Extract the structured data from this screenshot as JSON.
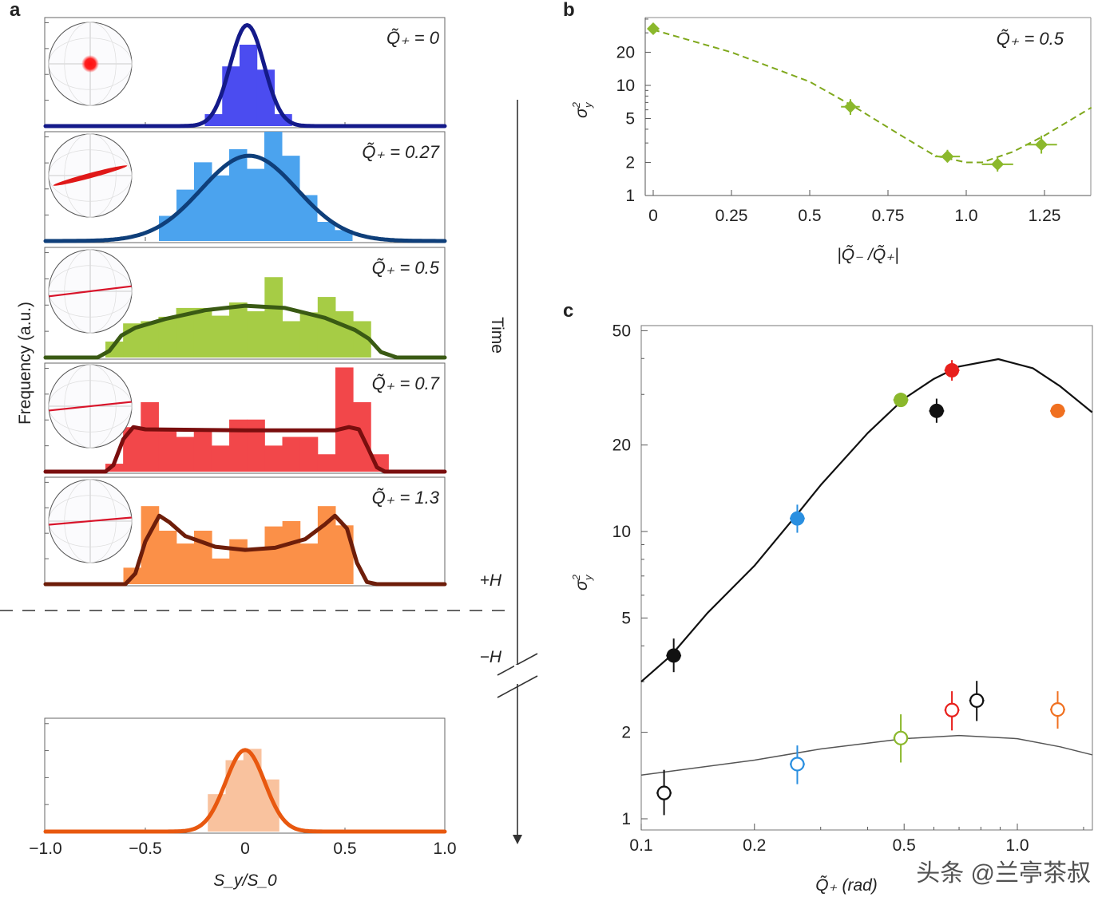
{
  "watermark": "头条 @兰亭茶叔",
  "annotations": {
    "time": "Time",
    "plus_h": "+H",
    "minus_h": "−H"
  },
  "chart_data": [
    {
      "panel": "a",
      "type": "bar",
      "ylabel": "Frequency (a.u.)",
      "xlabel": "S_y/S_0",
      "xlabel_main": "S",
      "xlabel_sub1": "y",
      "xlabel_sep": "/S",
      "xlabel_sub2": "0",
      "xlim": [
        -1,
        1
      ],
      "xticks": [
        "−1.0",
        "−0.5",
        "0",
        "0.5",
        "1.0"
      ],
      "xtick_values": [
        -1,
        -0.5,
        0,
        0.5,
        1
      ],
      "subplots": [
        {
          "label": "Q̃₊ = 0",
          "hist_color": "#4b4cf0",
          "fit_color": "#141a8a",
          "bin_start": -0.202,
          "bin_width": 0.087,
          "values": [
            0.11,
            0.55,
            0.75,
            0.52,
            0.11
          ],
          "fit": {
            "type": "gaussian",
            "amplitude": 0.93,
            "center": 0.01,
            "sigma": 0.085
          },
          "sphere_state": "dot"
        },
        {
          "label": "Q̃₊ = 0.27",
          "hist_color": "#4ba3ee",
          "fit_color": "#0f3f7a",
          "bin_start": -0.432,
          "bin_width": 0.088,
          "values": [
            0.23,
            0.47,
            0.72,
            0.6,
            0.84,
            0.66,
            1.0,
            0.78,
            0.42,
            0.175,
            0.1
          ],
          "fit": {
            "type": "gaussian",
            "amplitude": 0.78,
            "center": 0.02,
            "sigma": 0.24
          },
          "sphere_state": "ellipse",
          "sphere_angle": -15
        },
        {
          "label": "Q̃₊ = 0.5",
          "hist_color": "#a6cc45",
          "fit_color": "#3a5a14",
          "bin_start": -0.7,
          "bin_width": 0.0886,
          "values": [
            0.145,
            0.31,
            0.33,
            0.37,
            0.45,
            0.45,
            0.38,
            0.5,
            0.42,
            0.73,
            0.33,
            0.41,
            0.55,
            0.42,
            0.33
          ],
          "fit": {
            "type": "points",
            "points": [
              [
                -1,
                0
              ],
              [
                -0.74,
                0
              ],
              [
                -0.68,
                0.06
              ],
              [
                -0.62,
                0.2
              ],
              [
                -0.55,
                0.27
              ],
              [
                -0.4,
                0.35
              ],
              [
                -0.2,
                0.43
              ],
              [
                0,
                0.47
              ],
              [
                0.2,
                0.45
              ],
              [
                0.4,
                0.36
              ],
              [
                0.55,
                0.25
              ],
              [
                0.62,
                0.17
              ],
              [
                0.68,
                0.05
              ],
              [
                0.76,
                0
              ],
              [
                1,
                0
              ]
            ]
          },
          "sphere_state": "line",
          "sphere_angle": -7
        },
        {
          "label": "Q̃₊ = 0.7",
          "hist_color": "#f2474a",
          "fit_color": "#7a0e0e",
          "bin_start": -0.7,
          "bin_width": 0.0886,
          "values": [
            0.073,
            0.41,
            0.64,
            0.38,
            0.32,
            0.38,
            0.24,
            0.48,
            0.48,
            0.24,
            0.32,
            0.32,
            0.16,
            0.96,
            0.64,
            0.16
          ],
          "fit": {
            "type": "points",
            "points": [
              [
                -1,
                0
              ],
              [
                -0.7,
                0
              ],
              [
                -0.66,
                0.06
              ],
              [
                -0.61,
                0.3
              ],
              [
                -0.56,
                0.41
              ],
              [
                -0.5,
                0.39
              ],
              [
                0,
                0.38
              ],
              [
                0.45,
                0.38
              ],
              [
                0.52,
                0.41
              ],
              [
                0.57,
                0.39
              ],
              [
                0.62,
                0.2
              ],
              [
                0.66,
                0.04
              ],
              [
                0.7,
                0
              ],
              [
                1,
                0
              ]
            ]
          },
          "sphere_state": "line",
          "sphere_angle": -6
        },
        {
          "label": "Q̃₊ = 1.3",
          "hist_color": "#fb9048",
          "fit_color": "#6e1e0a",
          "bin_start": -0.61,
          "bin_width": 0.0885,
          "values": [
            0.154,
            0.73,
            0.5,
            0.38,
            0.5,
            0.24,
            0.42,
            0.32,
            0.54,
            0.59,
            0.38,
            0.73,
            0.55
          ],
          "fit": {
            "type": "points",
            "points": [
              [
                -1,
                0
              ],
              [
                -0.6,
                0
              ],
              [
                -0.55,
                0.1
              ],
              [
                -0.5,
                0.4
              ],
              [
                -0.43,
                0.64
              ],
              [
                -0.38,
                0.58
              ],
              [
                -0.3,
                0.45
              ],
              [
                -0.15,
                0.35
              ],
              [
                0,
                0.32
              ],
              [
                0.15,
                0.34
              ],
              [
                0.3,
                0.42
              ],
              [
                0.4,
                0.56
              ],
              [
                0.45,
                0.64
              ],
              [
                0.51,
                0.52
              ],
              [
                0.56,
                0.2
              ],
              [
                0.61,
                0.02
              ],
              [
                0.66,
                0
              ],
              [
                1,
                0
              ]
            ]
          },
          "sphere_state": "line",
          "sphere_angle": -5
        },
        {
          "label": "",
          "hist_color": "#f9c29e",
          "fit_color": "#e8580f",
          "bin_start": -0.187,
          "bin_width": 0.089,
          "values": [
            0.33,
            0.63,
            0.73,
            0.46
          ],
          "fit": {
            "type": "gaussian",
            "amplitude": 0.72,
            "center": 0.0,
            "sigma": 0.098
          },
          "sphere_state": "none"
        }
      ]
    },
    {
      "panel": "b",
      "type": "scatter",
      "annotation": "Q̃₊ = 0.5",
      "xlabel": "|Q̃₋ /Q̃₊|",
      "ylabel": "σ²y",
      "ylabel_main": "σ",
      "ylabel_sup": "2",
      "ylabel_sub": "y",
      "yscale": "log",
      "xlim": [
        -0.025,
        1.4
      ],
      "ylim": [
        1,
        41
      ],
      "xticks": [
        "0",
        "0.25",
        "0.5",
        "0.75",
        "1.0",
        "1.25"
      ],
      "xtick_values": [
        0,
        0.25,
        0.5,
        0.75,
        1.0,
        1.25
      ],
      "yticks": [
        "1",
        "2",
        "5",
        "10",
        "20"
      ],
      "ytick_values": [
        1,
        2,
        5,
        10,
        20
      ],
      "color": "#8bb82c",
      "points": [
        {
          "x": 0,
          "y": 32.7,
          "xerr": 0,
          "ylow": 31,
          "yhigh": 34.5
        },
        {
          "x": 0.63,
          "y": 6.4,
          "xerr": 0.03,
          "ylow": 5.4,
          "yhigh": 7.5
        },
        {
          "x": 0.94,
          "y": 2.26,
          "xerr": 0.04,
          "ylow": 2.0,
          "yhigh": 2.6
        },
        {
          "x": 1.1,
          "y": 1.92,
          "xerr": 0.05,
          "ylow": 1.65,
          "yhigh": 2.2
        },
        {
          "x": 1.24,
          "y": 2.9,
          "xerr": 0.05,
          "ylow": 2.4,
          "yhigh": 3.5
        }
      ],
      "fit_style": "dashed",
      "fit": [
        [
          0,
          32
        ],
        [
          0.25,
          20
        ],
        [
          0.5,
          10.8
        ],
        [
          0.65,
          6.2
        ],
        [
          0.8,
          3.4
        ],
        [
          0.9,
          2.3
        ],
        [
          1.0,
          2.0
        ],
        [
          1.05,
          2.0
        ],
        [
          1.15,
          2.5
        ],
        [
          1.25,
          3.5
        ],
        [
          1.4,
          6.3
        ]
      ]
    },
    {
      "panel": "c",
      "type": "scatter",
      "xlabel": "Q̃₊ (rad)",
      "ylabel": "σ²y",
      "ylabel_main": "σ",
      "ylabel_sup": "2",
      "ylabel_sub": "y",
      "xscale": "log",
      "yscale": "log",
      "xlim": [
        0.1,
        1.58
      ],
      "ylim": [
        0.91,
        52
      ],
      "xticks": [
        "0.1",
        "0.2",
        "0.5",
        "1.0"
      ],
      "xtick_values": [
        0.1,
        0.2,
        0.5,
        1.0
      ],
      "yticks": [
        "1",
        "2",
        "5",
        "10",
        "20",
        "50"
      ],
      "ytick_values": [
        1,
        2,
        5,
        10,
        20,
        50
      ],
      "series": [
        {
          "marker": "filled",
          "points": [
            {
              "x": 0.122,
              "y": 3.7,
              "ylow": 3.24,
              "yhigh": 4.24,
              "color": "#111111"
            },
            {
              "x": 0.26,
              "y": 11.1,
              "ylow": 9.9,
              "yhigh": 12.4,
              "color": "#2a8fe0"
            },
            {
              "x": 0.49,
              "y": 28.7,
              "ylow": 27.3,
              "yhigh": 30.4,
              "color": "#8bb82c"
            },
            {
              "x": 0.61,
              "y": 26.3,
              "ylow": 23.9,
              "yhigh": 29.0,
              "color": "#111111"
            },
            {
              "x": 0.67,
              "y": 36.4,
              "ylow": 33.5,
              "yhigh": 39.5,
              "color": "#e8201c"
            },
            {
              "x": 1.28,
              "y": 26.3,
              "ylow": 25.5,
              "yhigh": 27.2,
              "color": "#f07020"
            }
          ]
        },
        {
          "marker": "open",
          "points": [
            {
              "x": 0.115,
              "y": 1.23,
              "ylow": 1.03,
              "yhigh": 1.48,
              "color": "#111111"
            },
            {
              "x": 0.26,
              "y": 1.55,
              "ylow": 1.32,
              "yhigh": 1.8,
              "color": "#2a8fe0"
            },
            {
              "x": 0.49,
              "y": 1.91,
              "ylow": 1.57,
              "yhigh": 2.31,
              "color": "#8bb82c"
            },
            {
              "x": 0.67,
              "y": 2.39,
              "ylow": 2.03,
              "yhigh": 2.78,
              "color": "#e8201c"
            },
            {
              "x": 0.78,
              "y": 2.58,
              "ylow": 2.19,
              "yhigh": 3.02,
              "color": "#111111"
            },
            {
              "x": 1.28,
              "y": 2.4,
              "ylow": 2.06,
              "yhigh": 2.78,
              "color": "#f07020"
            }
          ]
        }
      ],
      "fits": [
        {
          "color": "#111111",
          "points": [
            [
              0.1,
              3.0
            ],
            [
              0.12,
              3.7
            ],
            [
              0.15,
              5.2
            ],
            [
              0.2,
              7.6
            ],
            [
              0.26,
              11.5
            ],
            [
              0.3,
              14.5
            ],
            [
              0.4,
              22
            ],
            [
              0.5,
              29
            ],
            [
              0.6,
              34
            ],
            [
              0.7,
              37.5
            ],
            [
              0.89,
              39.8
            ],
            [
              1.1,
              37
            ],
            [
              1.3,
              32
            ],
            [
              1.58,
              26
            ]
          ]
        },
        {
          "color": "#555555",
          "points": [
            [
              0.1,
              1.42
            ],
            [
              0.2,
              1.6
            ],
            [
              0.3,
              1.75
            ],
            [
              0.5,
              1.9
            ],
            [
              0.7,
              1.95
            ],
            [
              1.0,
              1.9
            ],
            [
              1.3,
              1.78
            ],
            [
              1.58,
              1.67
            ]
          ]
        }
      ]
    }
  ],
  "panel_letters": {
    "a": "a",
    "b": "b",
    "c": "c"
  }
}
